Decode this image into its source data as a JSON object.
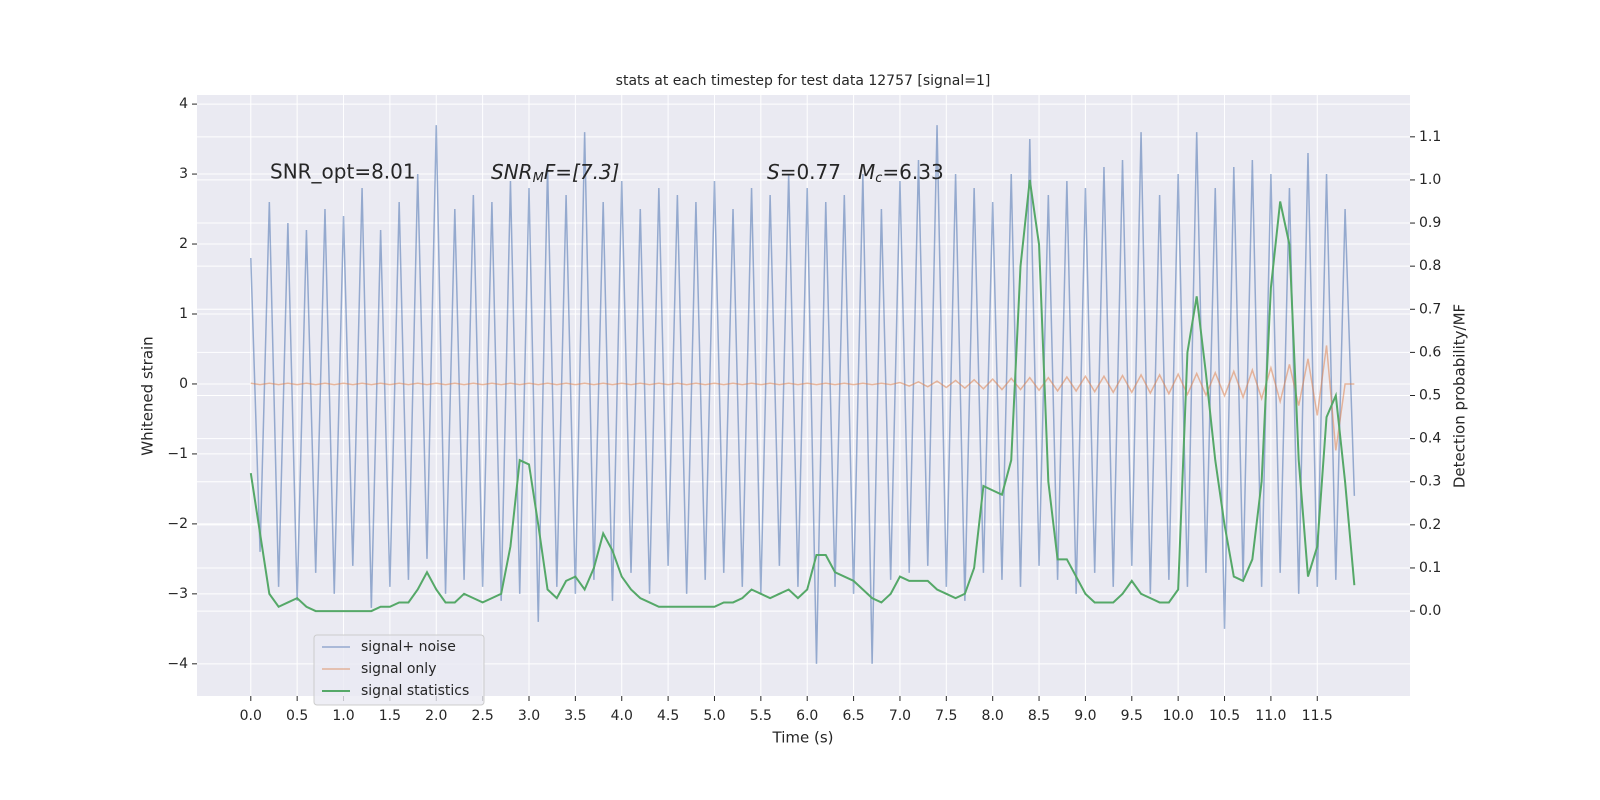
{
  "chart_data": {
    "type": "line",
    "title": "stats at each timestep for test data 12757 [signal=1]",
    "xlabel": "Time (s)",
    "ylabel": "Whitened strain",
    "y2label": "Detection probability/MF",
    "annotations": [
      {
        "text": "SNR_opt=8.01"
      },
      {
        "text": "SNR",
        "sub": "M",
        "rest": "F=[7.3]"
      },
      {
        "text": "S",
        "rest": "=0.77"
      },
      {
        "text": "M",
        "sub": "c",
        "rest": "=6.33"
      }
    ],
    "grid": true,
    "legend": "lower left",
    "xlim": [
      -0.58,
      12.5
    ],
    "ylim": [
      -4.46,
      4.13
    ],
    "y2lim": [
      -0.197,
      1.197
    ],
    "xticks": [
      {
        "value": 0,
        "label": "0.0"
      },
      0.5,
      {
        "value": 1,
        "label": "1.0"
      },
      1.5,
      {
        "value": 2,
        "label": "2.0"
      },
      2.5,
      {
        "value": 3,
        "label": "3.0"
      },
      3.5,
      {
        "value": 4,
        "label": "4.0"
      },
      4.5,
      {
        "value": 5,
        "label": "5.0"
      },
      5.5,
      {
        "value": 6,
        "label": "6.0"
      },
      6.5,
      {
        "value": 7,
        "label": "7.0"
      },
      7.5,
      {
        "value": 8,
        "label": "8.0"
      },
      8.5,
      {
        "value": 9,
        "label": "9.0"
      },
      9.5,
      {
        "value": 10,
        "label": "10.0"
      },
      10.5,
      {
        "value": 11,
        "label": "11.0"
      },
      11.5
    ],
    "yticks": [
      {
        "value": -4,
        "label": "−4"
      },
      {
        "value": -3,
        "label": "−3"
      },
      {
        "value": -2,
        "label": "−2"
      },
      {
        "value": -1,
        "label": "−1"
      },
      0,
      1,
      2,
      3,
      4
    ],
    "y2ticks": [
      {
        "value": 0,
        "label": "0.0"
      },
      0.1,
      0.2,
      0.3,
      0.4,
      0.5,
      0.6,
      0.7,
      0.8,
      0.9,
      {
        "value": 1,
        "label": "1.0"
      },
      1.1
    ],
    "x": [
      0,
      0.1,
      0.2,
      0.3,
      0.4,
      0.5,
      0.6,
      0.7,
      0.8,
      0.9,
      1,
      1.1,
      1.2,
      1.3,
      1.4,
      1.5,
      1.6,
      1.7,
      1.8,
      1.9,
      2,
      2.1,
      2.2,
      2.3,
      2.4,
      2.5,
      2.6,
      2.7,
      2.8,
      2.9,
      3,
      3.1,
      3.2,
      3.3,
      3.4,
      3.5,
      3.6,
      3.7,
      3.8,
      3.9,
      4,
      4.1,
      4.2,
      4.3,
      4.4,
      4.5,
      4.6,
      4.7,
      4.8,
      4.9,
      5,
      5.1,
      5.2,
      5.3,
      5.4,
      5.5,
      5.6,
      5.7,
      5.8,
      5.9,
      6,
      6.1,
      6.2,
      6.3,
      6.4,
      6.5,
      6.6,
      6.7,
      6.8,
      6.9,
      7,
      7.1,
      7.2,
      7.3,
      7.4,
      7.5,
      7.6,
      7.7,
      7.8,
      7.9,
      8,
      8.1,
      8.2,
      8.3,
      8.4,
      8.5,
      8.6,
      8.7,
      8.8,
      8.9,
      9,
      9.1,
      9.2,
      9.3,
      9.4,
      9.5,
      9.6,
      9.7,
      9.8,
      9.9,
      10,
      10.1,
      10.2,
      10.3,
      10.4,
      10.5,
      10.6,
      10.7,
      10.8,
      10.9,
      11,
      11.1,
      11.2,
      11.3,
      11.4,
      11.5,
      11.6,
      11.7,
      11.8,
      11.9
    ],
    "series": [
      {
        "name": "signal+ noise",
        "color": "#4c72b0",
        "values": [
          1.8,
          -2.4,
          2.6,
          -2.9,
          2.3,
          -3.1,
          2.2,
          -2.7,
          2.5,
          -3.0,
          2.4,
          -2.6,
          2.8,
          -3.2,
          2.2,
          -2.9,
          2.6,
          -2.8,
          3.0,
          -2.5,
          3.7,
          -3.0,
          2.5,
          -2.8,
          2.7,
          -2.9,
          2.6,
          -3.1,
          2.9,
          -3.0,
          2.8,
          -3.4,
          3.1,
          -2.9,
          2.7,
          -3.0,
          3.6,
          -2.8,
          2.6,
          -3.1,
          2.9,
          -2.7,
          2.5,
          -3.0,
          2.8,
          -2.6,
          2.7,
          -3.0,
          2.6,
          -2.8,
          2.9,
          -2.7,
          2.5,
          -2.9,
          2.8,
          -3.0,
          2.7,
          -2.6,
          3.0,
          -2.9,
          2.8,
          -4.0,
          2.6,
          -2.9,
          2.7,
          -3.0,
          3.0,
          -4.0,
          2.5,
          -2.8,
          2.9,
          -2.7,
          3.2,
          -2.6,
          3.7,
          -2.9,
          3.0,
          -3.1,
          2.8,
          -2.7,
          2.6,
          -2.8,
          3.0,
          -2.9,
          3.5,
          -2.6,
          2.7,
          -2.8,
          2.9,
          -3.0,
          2.8,
          -2.7,
          3.1,
          -2.9,
          3.2,
          -2.6,
          3.6,
          -3.0,
          2.7,
          -2.8,
          3.0,
          -2.9,
          3.6,
          -2.7,
          2.8,
          -3.5,
          3.1,
          -2.8,
          3.2,
          -2.9,
          3.0,
          -2.7,
          2.8,
          -3.0,
          3.3,
          -2.9,
          3.0,
          -2.8,
          2.5,
          -1.6
        ]
      },
      {
        "name": "signal only",
        "color": "#dd8452",
        "values": [
          0.01,
          -0.01,
          0.01,
          -0.01,
          0.01,
          -0.01,
          0.01,
          -0.01,
          0.01,
          -0.01,
          0.01,
          -0.01,
          0.01,
          -0.01,
          0.01,
          -0.01,
          0.01,
          -0.01,
          0.01,
          -0.01,
          0.01,
          -0.01,
          0.01,
          -0.01,
          0.01,
          -0.01,
          0.01,
          -0.01,
          0.01,
          -0.01,
          0.01,
          -0.01,
          0.01,
          -0.01,
          0.01,
          -0.01,
          0.01,
          -0.01,
          0.01,
          -0.01,
          0.01,
          -0.01,
          0.01,
          -0.01,
          0.01,
          -0.01,
          0.01,
          -0.01,
          0.01,
          -0.01,
          0.01,
          -0.01,
          0.01,
          -0.01,
          0.01,
          -0.01,
          0.01,
          -0.01,
          0.01,
          -0.01,
          0.01,
          -0.01,
          0.01,
          -0.01,
          0.01,
          -0.01,
          0.01,
          -0.01,
          0.01,
          -0.01,
          0.02,
          -0.03,
          0.03,
          -0.04,
          0.04,
          -0.05,
          0.05,
          -0.06,
          0.06,
          -0.07,
          0.07,
          -0.08,
          0.08,
          -0.08,
          0.09,
          -0.09,
          0.09,
          -0.1,
          0.1,
          -0.1,
          0.11,
          -0.11,
          0.11,
          -0.12,
          0.12,
          -0.12,
          0.13,
          -0.13,
          0.13,
          -0.14,
          0.14,
          -0.15,
          0.15,
          -0.16,
          0.16,
          -0.17,
          0.18,
          -0.19,
          0.2,
          -0.21,
          0.23,
          -0.25,
          0.28,
          -0.31,
          0.36,
          -0.45,
          0.55,
          -0.95,
          0,
          0
        ]
      },
      {
        "name": "signal statistics",
        "color": "#55a868",
        "axis": "y2",
        "values": [
          0.32,
          0.18,
          0.04,
          0.01,
          0.02,
          0.03,
          0.01,
          0,
          0,
          0,
          0,
          0,
          0,
          0,
          0.01,
          0.01,
          0.02,
          0.02,
          0.05,
          0.09,
          0.05,
          0.02,
          0.02,
          0.04,
          0.03,
          0.02,
          0.03,
          0.04,
          0.15,
          0.35,
          0.34,
          0.2,
          0.05,
          0.03,
          0.07,
          0.08,
          0.05,
          0.1,
          0.18,
          0.14,
          0.08,
          0.05,
          0.03,
          0.02,
          0.01,
          0.01,
          0.01,
          0.01,
          0.01,
          0.01,
          0.01,
          0.02,
          0.02,
          0.03,
          0.05,
          0.04,
          0.03,
          0.04,
          0.05,
          0.03,
          0.05,
          0.13,
          0.13,
          0.09,
          0.08,
          0.07,
          0.05,
          0.03,
          0.02,
          0.04,
          0.08,
          0.07,
          0.07,
          0.07,
          0.05,
          0.04,
          0.03,
          0.04,
          0.1,
          0.29,
          0.28,
          0.27,
          0.35,
          0.8,
          1.0,
          0.85,
          0.3,
          0.12,
          0.12,
          0.08,
          0.04,
          0.02,
          0.02,
          0.02,
          0.04,
          0.07,
          0.04,
          0.03,
          0.02,
          0.02,
          0.05,
          0.6,
          0.73,
          0.55,
          0.35,
          0.2,
          0.08,
          0.07,
          0.12,
          0.3,
          0.75,
          0.95,
          0.85,
          0.35,
          0.08,
          0.15,
          0.45,
          0.5,
          0.3,
          0.06
        ]
      }
    ]
  }
}
